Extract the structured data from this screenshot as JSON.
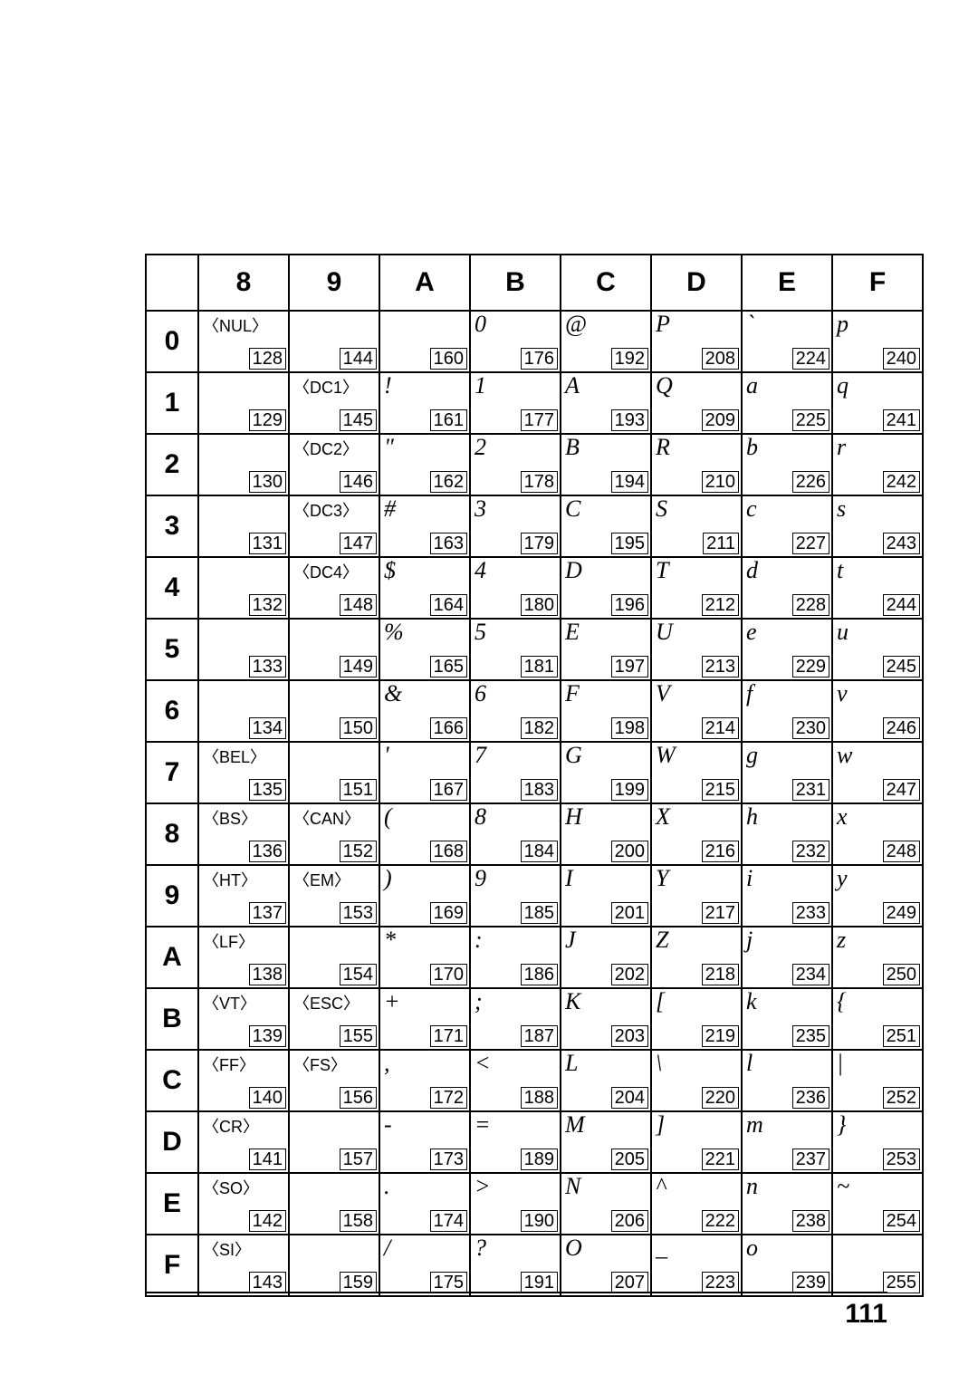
{
  "page_number": "111",
  "columns": [
    "8",
    "9",
    "A",
    "B",
    "C",
    "D",
    "E",
    "F"
  ],
  "rows": [
    "0",
    "1",
    "2",
    "3",
    "4",
    "5",
    "6",
    "7",
    "8",
    "9",
    "A",
    "B",
    "C",
    "D",
    "E",
    "F"
  ],
  "cells": [
    [
      {
        "g": "〈NUL〉",
        "c": "128"
      },
      {
        "g": "",
        "c": "144"
      },
      {
        "g": "",
        "c": "160"
      },
      {
        "g": "0",
        "c": "176"
      },
      {
        "g": "@",
        "c": "192"
      },
      {
        "g": "P",
        "c": "208"
      },
      {
        "g": "`",
        "c": "224"
      },
      {
        "g": "p",
        "c": "240"
      }
    ],
    [
      {
        "g": "",
        "c": "129"
      },
      {
        "g": "〈DC1〉",
        "c": "145"
      },
      {
        "g": "!",
        "c": "161"
      },
      {
        "g": "1",
        "c": "177"
      },
      {
        "g": "A",
        "c": "193"
      },
      {
        "g": "Q",
        "c": "209"
      },
      {
        "g": "a",
        "c": "225"
      },
      {
        "g": "q",
        "c": "241"
      }
    ],
    [
      {
        "g": "",
        "c": "130"
      },
      {
        "g": "〈DC2〉",
        "c": "146"
      },
      {
        "g": "\"",
        "c": "162"
      },
      {
        "g": "2",
        "c": "178"
      },
      {
        "g": "B",
        "c": "194"
      },
      {
        "g": "R",
        "c": "210"
      },
      {
        "g": "b",
        "c": "226"
      },
      {
        "g": "r",
        "c": "242"
      }
    ],
    [
      {
        "g": "",
        "c": "131"
      },
      {
        "g": "〈DC3〉",
        "c": "147"
      },
      {
        "g": "#",
        "c": "163"
      },
      {
        "g": "3",
        "c": "179"
      },
      {
        "g": "C",
        "c": "195"
      },
      {
        "g": "S",
        "c": "211"
      },
      {
        "g": "c",
        "c": "227"
      },
      {
        "g": "s",
        "c": "243"
      }
    ],
    [
      {
        "g": "",
        "c": "132"
      },
      {
        "g": "〈DC4〉",
        "c": "148"
      },
      {
        "g": "$",
        "c": "164"
      },
      {
        "g": "4",
        "c": "180"
      },
      {
        "g": "D",
        "c": "196"
      },
      {
        "g": "T",
        "c": "212"
      },
      {
        "g": "d",
        "c": "228"
      },
      {
        "g": "t",
        "c": "244"
      }
    ],
    [
      {
        "g": "",
        "c": "133"
      },
      {
        "g": "",
        "c": "149"
      },
      {
        "g": "%",
        "c": "165"
      },
      {
        "g": "5",
        "c": "181"
      },
      {
        "g": "E",
        "c": "197"
      },
      {
        "g": "U",
        "c": "213"
      },
      {
        "g": "e",
        "c": "229"
      },
      {
        "g": "u",
        "c": "245"
      }
    ],
    [
      {
        "g": "",
        "c": "134"
      },
      {
        "g": "",
        "c": "150"
      },
      {
        "g": "&",
        "c": "166"
      },
      {
        "g": "6",
        "c": "182"
      },
      {
        "g": "F",
        "c": "198"
      },
      {
        "g": "V",
        "c": "214"
      },
      {
        "g": "f",
        "c": "230"
      },
      {
        "g": "v",
        "c": "246"
      }
    ],
    [
      {
        "g": "〈BEL〉",
        "c": "135"
      },
      {
        "g": "",
        "c": "151"
      },
      {
        "g": "'",
        "c": "167"
      },
      {
        "g": "7",
        "c": "183"
      },
      {
        "g": "G",
        "c": "199"
      },
      {
        "g": "W",
        "c": "215"
      },
      {
        "g": "g",
        "c": "231"
      },
      {
        "g": "w",
        "c": "247"
      }
    ],
    [
      {
        "g": "〈BS〉",
        "c": "136"
      },
      {
        "g": "〈CAN〉",
        "c": "152"
      },
      {
        "g": "(",
        "c": "168"
      },
      {
        "g": "8",
        "c": "184"
      },
      {
        "g": "H",
        "c": "200"
      },
      {
        "g": "X",
        "c": "216"
      },
      {
        "g": "h",
        "c": "232"
      },
      {
        "g": "x",
        "c": "248"
      }
    ],
    [
      {
        "g": "〈HT〉",
        "c": "137"
      },
      {
        "g": "〈EM〉",
        "c": "153"
      },
      {
        "g": ")",
        "c": "169"
      },
      {
        "g": "9",
        "c": "185"
      },
      {
        "g": "I",
        "c": "201"
      },
      {
        "g": "Y",
        "c": "217"
      },
      {
        "g": "i",
        "c": "233"
      },
      {
        "g": "y",
        "c": "249"
      }
    ],
    [
      {
        "g": "〈LF〉",
        "c": "138"
      },
      {
        "g": "",
        "c": "154"
      },
      {
        "g": "*",
        "c": "170"
      },
      {
        "g": ":",
        "c": "186"
      },
      {
        "g": "J",
        "c": "202"
      },
      {
        "g": "Z",
        "c": "218"
      },
      {
        "g": "j",
        "c": "234"
      },
      {
        "g": "z",
        "c": "250"
      }
    ],
    [
      {
        "g": "〈VT〉",
        "c": "139"
      },
      {
        "g": "〈ESC〉",
        "c": "155"
      },
      {
        "g": "+",
        "c": "171"
      },
      {
        "g": ";",
        "c": "187"
      },
      {
        "g": "K",
        "c": "203"
      },
      {
        "g": "[",
        "c": "219"
      },
      {
        "g": "k",
        "c": "235"
      },
      {
        "g": "{",
        "c": "251"
      }
    ],
    [
      {
        "g": "〈FF〉",
        "c": "140"
      },
      {
        "g": "〈FS〉",
        "c": "156"
      },
      {
        "g": ",",
        "c": "172"
      },
      {
        "g": "<",
        "c": "188"
      },
      {
        "g": "L",
        "c": "204"
      },
      {
        "g": "\\",
        "c": "220"
      },
      {
        "g": "l",
        "c": "236"
      },
      {
        "g": "|",
        "c": "252"
      }
    ],
    [
      {
        "g": "〈CR〉",
        "c": "141"
      },
      {
        "g": "",
        "c": "157"
      },
      {
        "g": "-",
        "c": "173"
      },
      {
        "g": "=",
        "c": "189"
      },
      {
        "g": "M",
        "c": "205"
      },
      {
        "g": "]",
        "c": "221"
      },
      {
        "g": "m",
        "c": "237"
      },
      {
        "g": "}",
        "c": "253"
      }
    ],
    [
      {
        "g": "〈SO〉",
        "c": "142"
      },
      {
        "g": "",
        "c": "158"
      },
      {
        "g": ".",
        "c": "174"
      },
      {
        "g": ">",
        "c": "190"
      },
      {
        "g": "N",
        "c": "206"
      },
      {
        "g": "^",
        "c": "222"
      },
      {
        "g": "n",
        "c": "238"
      },
      {
        "g": "~",
        "c": "254"
      }
    ],
    [
      {
        "g": "〈SI〉",
        "c": "143"
      },
      {
        "g": "",
        "c": "159"
      },
      {
        "g": "/",
        "c": "175"
      },
      {
        "g": "?",
        "c": "191"
      },
      {
        "g": "O",
        "c": "207"
      },
      {
        "g": "_",
        "c": "223"
      },
      {
        "g": "o",
        "c": "239"
      },
      {
        "g": "",
        "c": "255"
      }
    ]
  ]
}
